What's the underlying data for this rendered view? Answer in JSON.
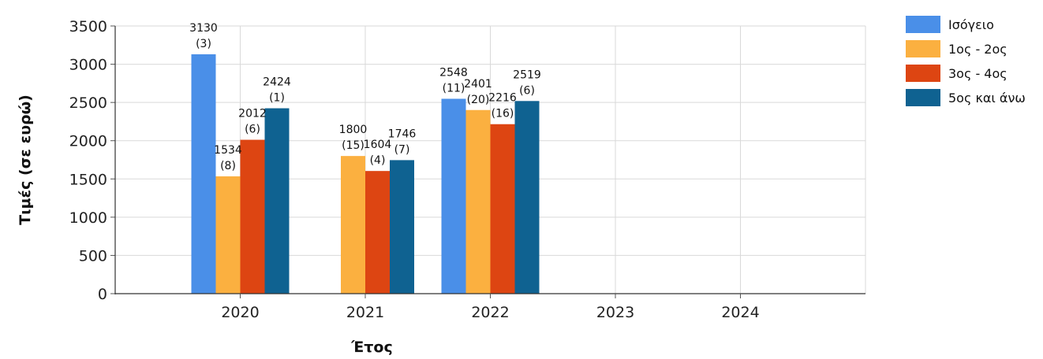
{
  "chart_data": {
    "type": "bar",
    "xlabel": "Έτος",
    "ylabel": "Τιμές (σε ευρώ)",
    "ylim": [
      0,
      3500
    ],
    "yticks": [
      0,
      500,
      1000,
      1500,
      2000,
      2500,
      3000,
      3500
    ],
    "categories": [
      "2020",
      "2021",
      "2022",
      "2023",
      "2024"
    ],
    "grid": true,
    "legend_position": "top-right",
    "series": [
      {
        "name": "Ισόγειο",
        "color": "#4a8fe8",
        "values": [
          3130,
          null,
          2548,
          null,
          null
        ],
        "counts": [
          "(3)",
          null,
          "(11)",
          null,
          null
        ]
      },
      {
        "name": "1ος - 2ος",
        "color": "#fbb040",
        "values": [
          1534,
          1800,
          2401,
          null,
          null
        ],
        "counts": [
          "(8)",
          "(15)",
          "(20)",
          null,
          null
        ]
      },
      {
        "name": "3ος - 4ος",
        "color": "#dd4512",
        "values": [
          2012,
          1604,
          2216,
          null,
          null
        ],
        "counts": [
          "(6)",
          "(4)",
          "(16)",
          null,
          null
        ]
      },
      {
        "name": "5ος και άνω",
        "color": "#0f6291",
        "values": [
          2424,
          1746,
          2519,
          null,
          null
        ],
        "counts": [
          "(1)",
          "(7)",
          "(6)",
          null,
          null
        ]
      }
    ]
  }
}
